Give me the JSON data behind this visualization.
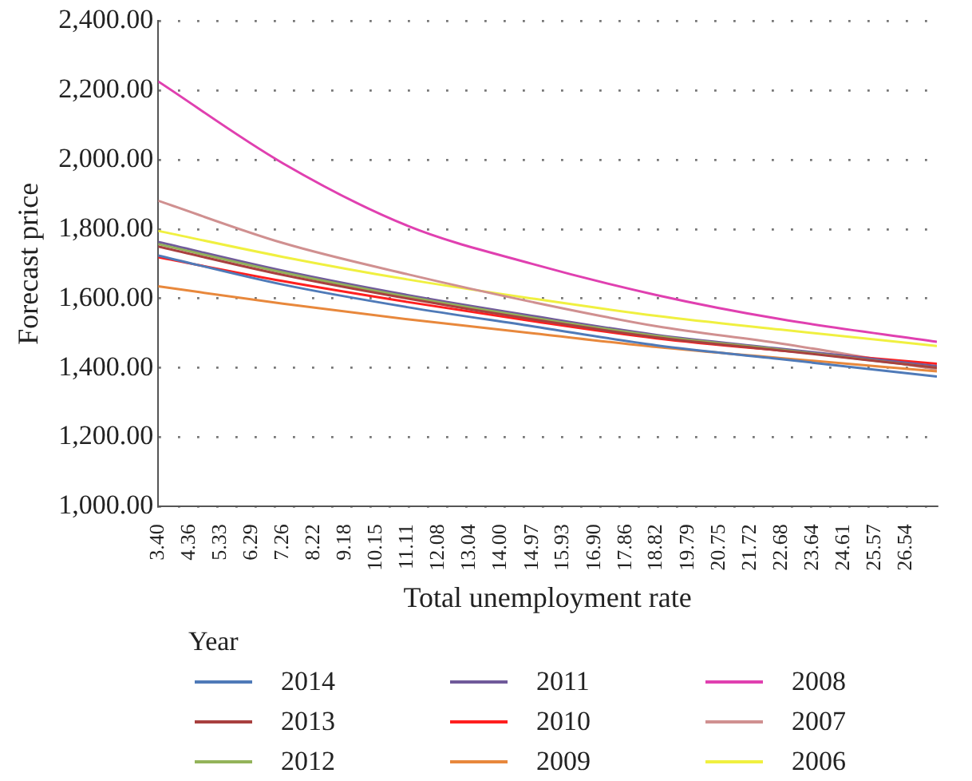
{
  "chart_data": {
    "type": "line",
    "xlabel": "Total unemployment rate",
    "ylabel": "Forecast price",
    "legend_title": "Year",
    "legend": "bottom",
    "grid": "y",
    "marker": "none",
    "line_style": "solid",
    "x": [
      3.4,
      7.26,
      11.11,
      14.97,
      18.82,
      22.68,
      27.5
    ],
    "xlim": [
      3.4,
      27.5
    ],
    "xticks": [
      {
        "value": 3.4,
        "label": "3.40"
      },
      {
        "value": 4.36,
        "label": "4.36"
      },
      {
        "value": 5.33,
        "label": "5.33"
      },
      {
        "value": 6.29,
        "label": "6.29"
      },
      {
        "value": 7.26,
        "label": "7.26"
      },
      {
        "value": 8.22,
        "label": "8.22"
      },
      {
        "value": 9.18,
        "label": "9.18"
      },
      {
        "value": 10.15,
        "label": "10.15"
      },
      {
        "value": 11.11,
        "label": "11.11"
      },
      {
        "value": 12.08,
        "label": "12.08"
      },
      {
        "value": 13.04,
        "label": "13.04"
      },
      {
        "value": 14,
        "label": "14.00"
      },
      {
        "value": 14.97,
        "label": "14.97"
      },
      {
        "value": 15.93,
        "label": "15.93"
      },
      {
        "value": 16.9,
        "label": "16.90"
      },
      {
        "value": 17.86,
        "label": "17.86"
      },
      {
        "value": 18.82,
        "label": "18.82"
      },
      {
        "value": 19.79,
        "label": "19.79"
      },
      {
        "value": 20.75,
        "label": "20.75"
      },
      {
        "value": 21.72,
        "label": "21.72"
      },
      {
        "value": 22.68,
        "label": "22.68"
      },
      {
        "value": 23.64,
        "label": "23.64"
      },
      {
        "value": 24.61,
        "label": "24.61"
      },
      {
        "value": 25.57,
        "label": "25.57"
      },
      {
        "value": 26.54,
        "label": "26.54"
      }
    ],
    "ylim": [
      1000,
      2400
    ],
    "yticks": [
      {
        "value": 1000,
        "label": "1,000.00"
      },
      {
        "value": 1200,
        "label": "1,200.00"
      },
      {
        "value": 1400,
        "label": "1,400.00"
      },
      {
        "value": 1600,
        "label": "1,600.00"
      },
      {
        "value": 1800,
        "label": "1,800.00"
      },
      {
        "value": 2000,
        "label": "2,000.00"
      },
      {
        "value": 2200,
        "label": "2,200.00"
      },
      {
        "value": 2400,
        "label": "2,400.00"
      }
    ],
    "series": [
      {
        "name": "2014",
        "color": "#4f7ab8",
        "values": [
          1724,
          1640,
          1575,
          1520,
          1465,
          1425,
          1375
        ]
      },
      {
        "name": "2013",
        "color": "#a8403f",
        "values": [
          1750,
          1668,
          1600,
          1540,
          1488,
          1450,
          1400
        ]
      },
      {
        "name": "2012",
        "color": "#93b35a",
        "values": [
          1757,
          1675,
          1605,
          1545,
          1492,
          1452,
          1400
        ]
      },
      {
        "name": "2011",
        "color": "#705a9a",
        "values": [
          1763,
          1680,
          1610,
          1550,
          1495,
          1455,
          1405
        ]
      },
      {
        "name": "2010",
        "color": "#ff1f1f",
        "values": [
          1719,
          1650,
          1590,
          1535,
          1485,
          1450,
          1412
        ]
      },
      {
        "name": "2009",
        "color": "#e8883c",
        "values": [
          1635,
          1585,
          1540,
          1500,
          1460,
          1428,
          1390
        ]
      },
      {
        "name": "2008",
        "color": "#e040b0",
        "values": [
          2226,
          1990,
          1810,
          1700,
          1610,
          1540,
          1475
        ]
      },
      {
        "name": "2007",
        "color": "#d09090",
        "values": [
          1882,
          1760,
          1670,
          1590,
          1520,
          1470,
          1395
        ]
      },
      {
        "name": "2006",
        "color": "#f0f040",
        "values": [
          1795,
          1720,
          1655,
          1600,
          1550,
          1510,
          1463
        ]
      }
    ]
  }
}
